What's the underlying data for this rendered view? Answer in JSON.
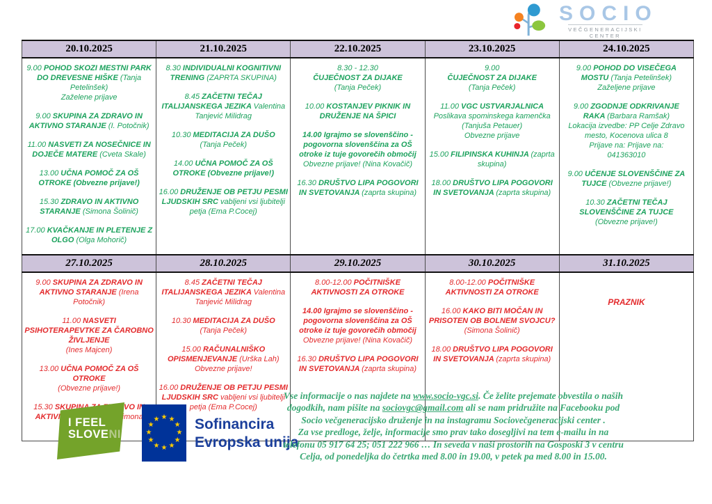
{
  "logo": {
    "title": "SOCIO",
    "subtitle_line1": "VEČGENERACIJSKI",
    "subtitle_line2": "CENTER"
  },
  "table": {
    "colors": {
      "week1_text": "#1ca25d",
      "week2_text": "#e32a2c",
      "header_bg": "#cdc3da"
    },
    "weeks": [
      {
        "days": [
          {
            "date": "20.10.2025",
            "events": [
              [
                {
                  "t": "9.00 ",
                  "b": false
                },
                {
                  "t": "POHOD SKOZI MESTNI PARK DO DREVESNE HIŠKE ",
                  "b": true
                },
                {
                  "t": "(Tanja Petelinšek)\nZaželene prijave",
                  "b": false
                }
              ],
              [
                {
                  "t": "9.00  ",
                  "b": false
                },
                {
                  "t": "SKUPINA ZA ZDRAVO IN AKTIVNO STARANJE ",
                  "b": true
                },
                {
                  "t": "(I. Potočnik)",
                  "b": false
                }
              ],
              [
                {
                  "t": "11.00 ",
                  "b": false
                },
                {
                  "t": "NASVETI ZA NOSEČNICE IN DOJEČE MATERE ",
                  "b": true
                },
                {
                  "t": "(Cveta Skale)",
                  "b": false
                }
              ],
              [
                {
                  "t": "13.00  ",
                  "b": false
                },
                {
                  "t": "UČNA POMOČ ZA OŠ OTROKE (Obvezne prijave!)",
                  "b": true
                }
              ],
              [
                {
                  "t": "15.30 ",
                  "b": false
                },
                {
                  "t": "ZDRAVO IN AKTIVNO STARANJE ",
                  "b": true
                },
                {
                  "t": "(Simona Šolinič)",
                  "b": false
                }
              ],
              [
                {
                  "t": "17.00 ",
                  "b": false
                },
                {
                  "t": "KVAČKANJE IN PLETENJE  Z OLGO ",
                  "b": true
                },
                {
                  "t": "(Olga Mohorič)",
                  "b": false
                }
              ]
            ]
          },
          {
            "date": "21.10.2025",
            "events": [
              [
                {
                  "t": "8.30 ",
                  "b": false
                },
                {
                  "t": "INDIVIDUALNI KOGNITIVNI TRENING ",
                  "b": true
                },
                {
                  "t": "(ZAPRTA SKUPINA)",
                  "b": false
                }
              ],
              [
                {
                  "t": "8.45 ",
                  "b": false
                },
                {
                  "t": "ZAČETNI TEČAJ ITALIJANSKEGA JEZIKA ",
                  "b": true
                },
                {
                  "t": "Valentina Tanjević Milidrag",
                  "b": false
                }
              ],
              [
                {
                  "t": "10.30 ",
                  "b": false
                },
                {
                  "t": "MEDITACIJA ZA DUŠO ",
                  "b": true
                },
                {
                  "t": "\n(Tanja Peček)",
                  "b": false
                }
              ],
              [
                {
                  "t": "14.00  ",
                  "b": false
                },
                {
                  "t": "UČNA POMOČ ZA OŠ OTROKE (Obvezne prijave!)",
                  "b": true
                }
              ],
              [
                {
                  "t": "16.00 ",
                  "b": false
                },
                {
                  "t": "DRUŽENJE OB PETJU PESMI LJUDSKIH SRC ",
                  "b": true
                },
                {
                  "t": " vabljeni vsi ljubitelji petja  (Ema P.Cocej)",
                  "b": false
                }
              ]
            ]
          },
          {
            "date": "22.10.2025",
            "events": [
              [
                {
                  "t": "8.30 - 12.30\n",
                  "b": false
                },
                {
                  "t": "ČUJEČNOST ZA DIJAKE",
                  "b": true
                },
                {
                  "t": "\n(Tanja Peček)",
                  "b": false
                }
              ],
              [
                {
                  "t": "10.00 ",
                  "b": false
                },
                {
                  "t": "KOSTANJEV PIKNIK IN DRUŽENJE NA ŠPICI",
                  "b": true
                }
              ],
              [
                {
                  "t": "14.00 Igrajmo se slovenščino - pogovorna slovenščina za OŠ otroke iz tuje govorečih območij",
                  "b": true
                },
                {
                  "t": "\nObvezne prijave! (Nina Kovačič)",
                  "b": false
                }
              ],
              [
                {
                  "t": "16.30  ",
                  "b": false
                },
                {
                  "t": "DRUŠTVO LIPA POGOVORI IN SVETOVANJA ",
                  "b": true
                },
                {
                  "t": "(zaprta skupina)",
                  "b": false
                }
              ]
            ]
          },
          {
            "date": "23.10.2025",
            "events": [
              [
                {
                  "t": "9.00\n",
                  "b": false
                },
                {
                  "t": "ČUJEČNOST ZA DIJAKE",
                  "b": true
                },
                {
                  "t": "\n(Tanja Peček)",
                  "b": false
                }
              ],
              [
                {
                  "t": "11.00 ",
                  "b": false
                },
                {
                  "t": "VGC USTVARJALNICA",
                  "b": true
                },
                {
                  "t": "\nPoslikava spominskega kamenčka\n(Tanjuša Petauer)\nObvezne prijave",
                  "b": false
                }
              ],
              [
                {
                  "t": "15.00 ",
                  "b": false
                },
                {
                  "t": "FILIPINSKA KUHINJA ",
                  "b": true
                },
                {
                  "t": "(zaprta skupina)",
                  "b": false
                }
              ],
              [
                {
                  "t": "18.00  ",
                  "b": false
                },
                {
                  "t": "DRUŠTVO LIPA POGOVORI IN SVETOVANJA ",
                  "b": true
                },
                {
                  "t": "(zaprta skupina)",
                  "b": false
                }
              ]
            ]
          },
          {
            "date": "24.10.2025",
            "events": [
              [
                {
                  "t": "9.00 ",
                  "b": false
                },
                {
                  "t": "POHOD DO VISEČEGA MOSTU ",
                  "b": true
                },
                {
                  "t": "(Tanja Petelinšek)\nZaželjene prijave",
                  "b": false
                }
              ],
              [
                {
                  "t": "9.00 ",
                  "b": false
                },
                {
                  "t": "ZGODNJE ODKRIVANJE RAKA ",
                  "b": true
                },
                {
                  "t": "(Barbara Ramšak)\nLokacija izvedbe:  PP Celje Zdravo mesto, Kocenova ulica 8\nPrijave na: Prijave na:\n041363010",
                  "b": false
                }
              ],
              [
                {
                  "t": "9.00 ",
                  "b": false
                },
                {
                  "t": "UČENJE SLOVENŠČINE ZA TUJCE ",
                  "b": true
                },
                {
                  "t": "(Obvezne prijave!)",
                  "b": false
                }
              ],
              [
                {
                  "t": "10.30 ",
                  "b": false
                },
                {
                  "t": "ZAČETNI TEČAJ SLOVENŠČINE ZA TUJCE",
                  "b": true
                },
                {
                  "t": "\n(Obvezne prijave!)",
                  "b": false
                }
              ]
            ]
          }
        ]
      },
      {
        "days": [
          {
            "date": "27.10.2025",
            "events": [
              [
                {
                  "t": "9.00  ",
                  "b": false
                },
                {
                  "t": "SKUPINA ZA ZDRAVO IN AKTIVNO STARANJE ",
                  "b": true
                },
                {
                  "t": "(Irena Potočnik)",
                  "b": false
                }
              ],
              [
                {
                  "t": "11.00 ",
                  "b": false
                },
                {
                  "t": "NASVETI PSIHOTERAPEVTKE ZA ČAROBNO ŽIVLJENJE",
                  "b": true
                },
                {
                  "t": "\n(Ines Majcen)",
                  "b": false
                }
              ],
              [
                {
                  "t": "13.00 ",
                  "b": false
                },
                {
                  "t": "UČNA POMOČ ZA OŠ OTROKE",
                  "b": true
                },
                {
                  "t": "\n(Obvezne prijave!)",
                  "b": false
                }
              ],
              [
                {
                  "t": "15.30 ",
                  "b": false
                },
                {
                  "t": "SKUPINA ZA ZDRAVO IN AKTIVNO STARANJE ",
                  "b": true
                },
                {
                  "t": "(Simona Šolinič)",
                  "b": false
                }
              ]
            ]
          },
          {
            "date": "28.10.2025",
            "events": [
              [
                {
                  "t": "8.45 ",
                  "b": false
                },
                {
                  "t": "ZAČETNI TEČAJ ITALIJANSKEGA JEZIKA ",
                  "b": true
                },
                {
                  "t": "Valentina Tanjević Milidrag",
                  "b": false
                }
              ],
              [
                {
                  "t": "10.30 ",
                  "b": false
                },
                {
                  "t": "MEDITACIJA ZA DUŠO",
                  "b": true
                },
                {
                  "t": "\n(Tanja Peček)",
                  "b": false
                }
              ],
              [
                {
                  "t": "15.00 ",
                  "b": false
                },
                {
                  "t": "RAČUNALNIŠKO OPISMENJEVANJE ",
                  "b": true
                },
                {
                  "t": "(Urška Lah)\nObvezne prijave!",
                  "b": false
                }
              ],
              [
                {
                  "t": "16.00 ",
                  "b": false
                },
                {
                  "t": "DRUŽENJE OB PETJU PESMI LJUDSKIH SRC ",
                  "b": true
                },
                {
                  "t": " vabljeni vsi ljubitelji petja  (Ema P.Cocej)",
                  "b": false
                }
              ]
            ]
          },
          {
            "date": "29.10.2025",
            "events": [
              [
                {
                  "t": "8.00-12.00 ",
                  "b": false
                },
                {
                  "t": "POČITNIŠKE AKTIVNOSTI ZA OTROKE",
                  "b": true
                }
              ],
              [
                {
                  "t": "14.00 Igrajmo se slovenščino - pogovorna slovenščina za OŠ otroke iz tuje govorečih območij",
                  "b": true
                },
                {
                  "t": "\nObvezne prijave! (Nina Kovačič)",
                  "b": false
                }
              ],
              [
                {
                  "t": "16.30  ",
                  "b": false
                },
                {
                  "t": "DRUŠTVO LIPA POGOVORI IN SVETOVANJA ",
                  "b": true
                },
                {
                  "t": "(zaprta skupina)",
                  "b": false
                }
              ]
            ]
          },
          {
            "date": "30.10.2025",
            "events": [
              [
                {
                  "t": "8.00-12.00 ",
                  "b": false
                },
                {
                  "t": "POČITNIŠKE AKTIVNOSTI ZA OTROKE",
                  "b": true
                }
              ],
              [
                {
                  "t": "16.00 ",
                  "b": false
                },
                {
                  "t": "KAKO BITI MOČAN IN PRISOTEN OB BOLNEM SVOJCU?",
                  "b": true
                },
                {
                  "t": "\n(Simona Šolinič)",
                  "b": false
                }
              ],
              [
                {
                  "t": "18.00  ",
                  "b": false
                },
                {
                  "t": "DRUŠTVO LIPA POGOVORI IN SVETOVANJA ",
                  "b": true
                },
                {
                  "t": "(zaprta skupina)",
                  "b": false
                }
              ]
            ]
          },
          {
            "date": "31.10.2025",
            "events": [
              [
                {
                  "t": "PRAZNIK",
                  "b": true
                }
              ]
            ]
          }
        ]
      }
    ]
  },
  "footer": {
    "slovenia": {
      "line1": "I FEEL",
      "line2a": "S",
      "line2b": "LOVE",
      "line2c": "NIA"
    },
    "eu": {
      "star_glyph": "★",
      "star_count": 12
    },
    "cofinance_line1": "Sofinancira",
    "cofinance_line2": "Evropska unija",
    "note_runs": [
      {
        "t": "Vse informacije o nas najdete na "
      },
      {
        "t": "www.socio-vgc.si",
        "link": true
      },
      {
        "t": ". Če želite prejemate obvestila o naših\ndogodkih, nam pišite na "
      },
      {
        "t": "sociovgc@gmail.com",
        "link": true
      },
      {
        "t": " ali se nam pridružite na Facebooku pod\nSocio večgeneracijsko druženje in na instagramu Sociovečgeneracijski center .\nZa vse predloge, želje, informacije smo prav tako dosegljivi na tem e-mailu in na\ntelefonu 05 917 64 25; 051 222 966 … In seveda v naši prostorih na Gosposki 3 v centru\nCelja, od ponedeljka do četrtka med 8.00 in 19.00, v petek pa med 8.00 in 15.00."
      }
    ]
  }
}
